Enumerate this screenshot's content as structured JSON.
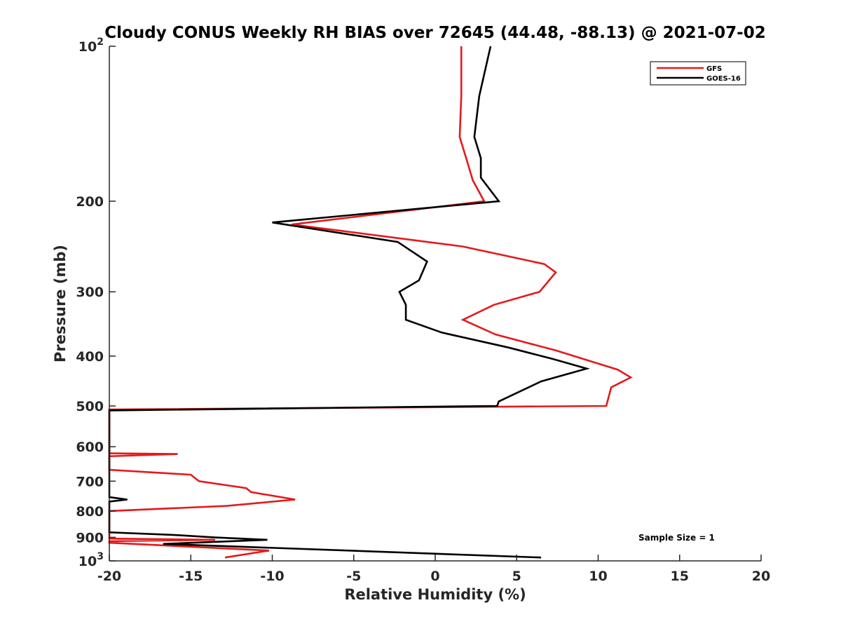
{
  "chart_data": {
    "type": "line",
    "title": "Cloudy CONUS Weekly RH BIAS over 72645 (44.48, -88.13) @ 2021-07-02",
    "xlabel": "Relative Humidity (%)",
    "ylabel": "Pressure (mb)",
    "xlim": [
      -20,
      20
    ],
    "ylim": [
      100,
      1000
    ],
    "y_scale": "log",
    "y_reversed": true,
    "grid": false,
    "legend_position": "top-right",
    "x_ticks": [
      "-20",
      "-15",
      "-10",
      "-5",
      "0",
      "5",
      "10",
      "15",
      "20"
    ],
    "y_ticks": [
      {
        "value": 100,
        "base": "10",
        "exp": "2"
      },
      {
        "value": 200,
        "label": "200"
      },
      {
        "value": 300,
        "label": "300"
      },
      {
        "value": 400,
        "label": "400"
      },
      {
        "value": 500,
        "label": "500"
      },
      {
        "value": 600,
        "label": "600"
      },
      {
        "value": 700,
        "label": "700"
      },
      {
        "value": 800,
        "label": "800"
      },
      {
        "value": 900,
        "label": "900"
      },
      {
        "value": 1000,
        "base": "10",
        "exp": "3"
      }
    ],
    "annotation": "Sample Size = 1",
    "series": [
      {
        "name": "GFS",
        "color": "#e41a1c",
        "points": [
          [
            1.6,
            100
          ],
          [
            1.6,
            125
          ],
          [
            1.5,
            150
          ],
          [
            1.9,
            165
          ],
          [
            2.3,
            182
          ],
          [
            3.0,
            200
          ],
          [
            -8.8,
            222
          ],
          [
            1.7,
            245
          ],
          [
            6.7,
            265
          ],
          [
            7.4,
            275
          ],
          [
            6.4,
            300
          ],
          [
            3.6,
            318
          ],
          [
            1.7,
            340
          ],
          [
            3.7,
            363
          ],
          [
            7.4,
            390
          ],
          [
            11.2,
            425
          ],
          [
            12.0,
            440
          ],
          [
            10.8,
            460
          ],
          [
            10.5,
            500
          ],
          [
            -20,
            508
          ],
          [
            -20,
            618
          ],
          [
            -15.8,
            620
          ],
          [
            -20,
            626
          ],
          [
            -20,
            665
          ],
          [
            -15.0,
            680
          ],
          [
            -14.5,
            700
          ],
          [
            -11.6,
            722
          ],
          [
            -11.3,
            735
          ],
          [
            -8.6,
            760
          ],
          [
            -12.8,
            782
          ],
          [
            -20,
            800
          ],
          [
            -20,
            905
          ],
          [
            -13.5,
            910
          ],
          [
            -20,
            916
          ],
          [
            -20,
            922
          ],
          [
            -10.2,
            955
          ],
          [
            -12.9,
            985
          ]
        ]
      },
      {
        "name": "GOES-16",
        "color": "#000000",
        "points": [
          [
            3.4,
            100
          ],
          [
            2.7,
            125
          ],
          [
            2.4,
            150
          ],
          [
            2.8,
            165
          ],
          [
            2.8,
            180
          ],
          [
            3.9,
            200
          ],
          [
            -10.0,
            220
          ],
          [
            -2.3,
            240
          ],
          [
            -0.5,
            262
          ],
          [
            -1.0,
            285
          ],
          [
            -2.2,
            300
          ],
          [
            -1.8,
            318
          ],
          [
            -1.8,
            340
          ],
          [
            0.4,
            360
          ],
          [
            4.5,
            385
          ],
          [
            7.2,
            405
          ],
          [
            9.3,
            423
          ],
          [
            6.5,
            448
          ],
          [
            3.9,
            490
          ],
          [
            3.8,
            500
          ],
          [
            -20,
            510
          ],
          [
            -20,
            752
          ],
          [
            -18.9,
            760
          ],
          [
            -20,
            767
          ],
          [
            -20,
            880
          ],
          [
            -16.1,
            890
          ],
          [
            -13.6,
            900
          ],
          [
            -10.3,
            910
          ],
          [
            -16.7,
            927
          ],
          [
            6.5,
            985
          ]
        ]
      }
    ]
  }
}
